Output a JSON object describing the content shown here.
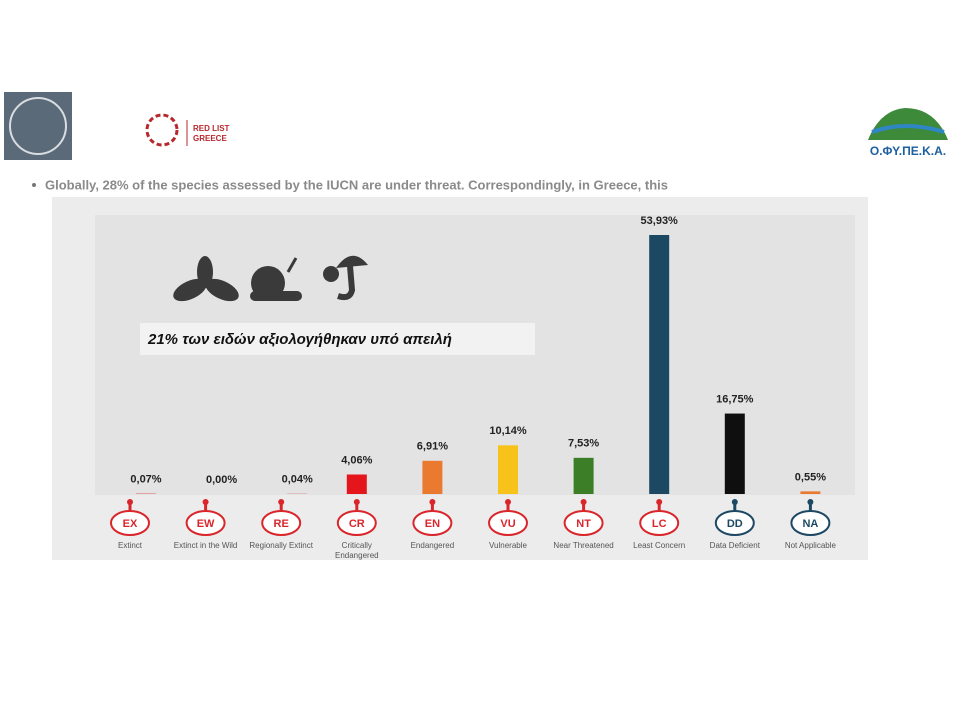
{
  "slide": {
    "logo_left_text": "RED LIST",
    "logo_left_subtext": "GREECE",
    "logo_right_text": "Ο.ΦΥ.ΠΕ.Κ.Α.",
    "bullet": "Globally, 28% of the species assessed by the IUCN are under threat. Correspondingly, in Greece, this"
  },
  "chart_data": {
    "type": "bar",
    "annotation": "21% των ειδών αξιολογήθηκαν υπό απειλή",
    "categories": [
      "EX",
      "EW",
      "RE",
      "CR",
      "EN",
      "VU",
      "NT",
      "LC",
      "DD",
      "NA"
    ],
    "category_names": [
      "Extinct",
      "Extinct in the Wild",
      "Regionally Extinct",
      "Critically Endangered",
      "Endangered",
      "Vulnerable",
      "Near Threatened",
      "Least Concern",
      "Data Deficient",
      "Not Applicable"
    ],
    "values": [
      0.07,
      0,
      0.04,
      4.06,
      6.91,
      10.14,
      7.53,
      53.93,
      16.75,
      0.55
    ],
    "value_labels": [
      "0,07%",
      "0,00%",
      "0,04%",
      "4,06%",
      "6,91%",
      "10,14%",
      "7,53%",
      "53,93%",
      "16,75%",
      "0,55%"
    ],
    "colors": [
      "#d9262b",
      "#d9262b",
      "#d9262b",
      "#e4151b",
      "#ea7a2f",
      "#f7c21a",
      "#3c7d28",
      "#1d4864",
      "#0f0f0f",
      "#ea7a2f"
    ],
    "code_colors": [
      "#d9262b",
      "#d9262b",
      "#d9262b",
      "#d9262b",
      "#d9262b",
      "#d9262b",
      "#d9262b",
      "#d9262b",
      "#1d4864",
      "#1d4864"
    ]
  }
}
